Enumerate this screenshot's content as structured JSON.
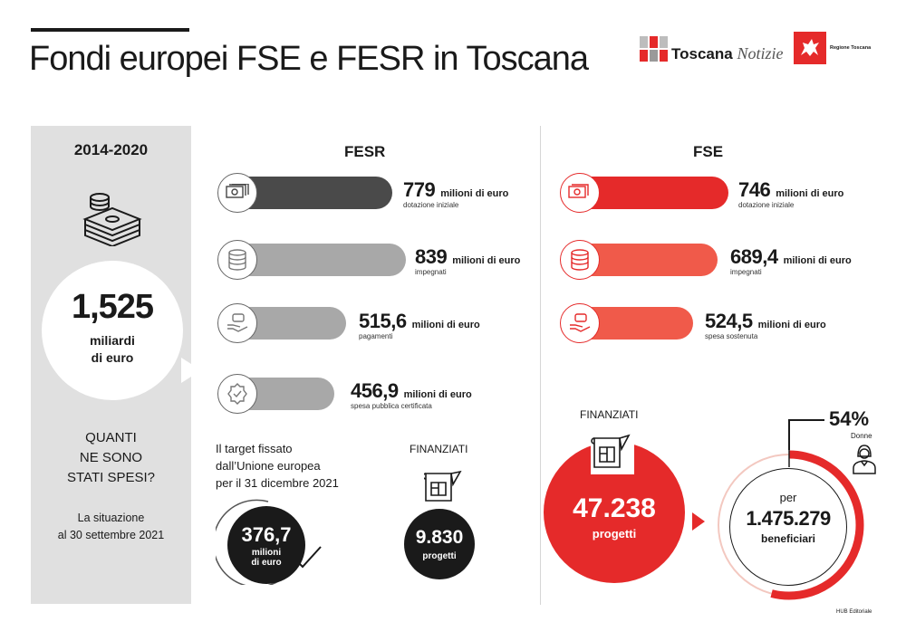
{
  "header": {
    "title": "Fondi europei FSE e FESR in Toscana",
    "logo_toscana_bold": "Toscana",
    "logo_toscana_italic": "Notizie",
    "logo_regione": "Regione Toscana"
  },
  "left_panel": {
    "period": "2014-2020",
    "total_value": "1,525",
    "total_unit_line1": "miliardi",
    "total_unit_line2": "di euro",
    "question_line1": "QUANTI",
    "question_line2": "NE SONO",
    "question_line3": "STATI SPESI?",
    "situation_line1": "La situazione",
    "situation_line2": "al 30 settembre 2021"
  },
  "fesr": {
    "heading": "FESR",
    "items": [
      {
        "value": "779",
        "unit": "milioni di euro",
        "label": "dotazione iniziale",
        "icon": "banknote-icon"
      },
      {
        "value": "839",
        "unit": "milioni di euro",
        "label": "impegnati",
        "icon": "coins-icon"
      },
      {
        "value": "515,6",
        "unit": "milioni di euro",
        "label": "pagamenti",
        "icon": "hand-money-icon"
      },
      {
        "value": "456,9",
        "unit": "milioni di euro",
        "label": "spesa pubblica certificata",
        "icon": "certified-badge-icon"
      }
    ],
    "target_line1": "Il target fissato",
    "target_line2": "dall’Unione europea",
    "target_line3": "per il 31 dicembre 2021",
    "target_value": "376,7",
    "target_unit_line1": "milioni",
    "target_unit_line2": "di euro",
    "financed_label": "FINANZIATI",
    "projects_value": "9.830",
    "projects_label": "progetti"
  },
  "fse": {
    "heading": "FSE",
    "items": [
      {
        "value": "746",
        "unit": "milioni di euro",
        "label": "dotazione iniziale",
        "icon": "banknote-icon"
      },
      {
        "value": "689,4",
        "unit": "milioni di euro",
        "label": "impegnati",
        "icon": "coins-icon"
      },
      {
        "value": "524,5",
        "unit": "milioni di euro",
        "label": "spesa sostenuta",
        "icon": "hand-money-icon"
      }
    ],
    "financed_label": "FINANZIATI",
    "projects_value": "47.238",
    "projects_label": "progetti",
    "women_percent": "54%",
    "women_label": "Donne",
    "women_fraction": 0.54,
    "beneficiaries_prefix": "per",
    "beneficiaries_value": "1.475.279",
    "beneficiaries_label": "beneficiari"
  },
  "footer": {
    "credit": "HUB Editoriale"
  },
  "colors": {
    "dark_bar": "#4a4a4a",
    "light_bar": "#a8a8a8",
    "red": "#e52a2a",
    "light_red": "#f05a4a",
    "panel_gray": "#e0e0e0"
  }
}
